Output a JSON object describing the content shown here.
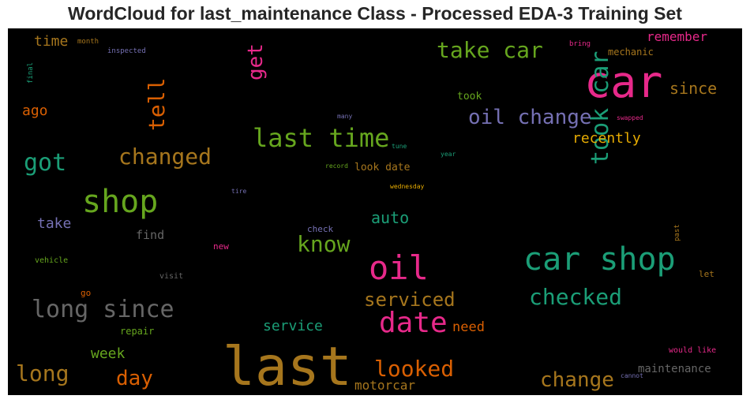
{
  "chart_data": {
    "type": "wordcloud",
    "title": "WordCloud for last_maintenance Class - Processed EDA-3 Training Set",
    "background": "#000000",
    "palette": [
      "#e7298a",
      "#66a61e",
      "#1b9e77",
      "#a6761d",
      "#7570b3",
      "#d95f02",
      "#666666",
      "#e6ab02"
    ],
    "words": [
      {
        "text": "last",
        "color": "#a6761d",
        "vertical": false
      },
      {
        "text": "car",
        "color": "#e7298a",
        "vertical": false
      },
      {
        "text": "car shop",
        "color": "#1b9e77",
        "vertical": false
      },
      {
        "text": "shop",
        "color": "#66a61e",
        "vertical": false
      },
      {
        "text": "oil",
        "color": "#e7298a",
        "vertical": false
      },
      {
        "text": "took car",
        "color": "#1b9e77",
        "vertical": true
      },
      {
        "text": "date",
        "color": "#e7298a",
        "vertical": false
      },
      {
        "text": "last time",
        "color": "#66a61e",
        "vertical": false
      },
      {
        "text": "long since",
        "color": "#666666",
        "vertical": false
      },
      {
        "text": "take car",
        "color": "#66a61e",
        "vertical": false
      },
      {
        "text": "changed",
        "color": "#a6761d",
        "vertical": false
      },
      {
        "text": "checked",
        "color": "#1b9e77",
        "vertical": false
      },
      {
        "text": "oil change",
        "color": "#7570b3",
        "vertical": false
      },
      {
        "text": "looked",
        "color": "#d95f02",
        "vertical": false
      },
      {
        "text": "change",
        "color": "#a6761d",
        "vertical": false
      },
      {
        "text": "tell",
        "color": "#d95f02",
        "vertical": true
      },
      {
        "text": "got",
        "color": "#1b9e77",
        "vertical": false
      },
      {
        "text": "know",
        "color": "#66a61e",
        "vertical": false
      },
      {
        "text": "long",
        "color": "#a6761d",
        "vertical": false
      },
      {
        "text": "get",
        "color": "#e7298a",
        "vertical": true
      },
      {
        "text": "day",
        "color": "#d95f02",
        "vertical": false
      },
      {
        "text": "serviced",
        "color": "#a6761d",
        "vertical": false
      },
      {
        "text": "auto",
        "color": "#1b9e77",
        "vertical": false
      },
      {
        "text": "since",
        "color": "#a6761d",
        "vertical": false
      },
      {
        "text": "recently",
        "color": "#e6ab02",
        "vertical": false
      },
      {
        "text": "service",
        "color": "#1b9e77",
        "vertical": false
      },
      {
        "text": "week",
        "color": "#66a61e",
        "vertical": false
      },
      {
        "text": "motorcar",
        "color": "#a6761d",
        "vertical": false
      },
      {
        "text": "ago",
        "color": "#d95f02",
        "vertical": false
      },
      {
        "text": "need",
        "color": "#d95f02",
        "vertical": false
      },
      {
        "text": "remember",
        "color": "#e7298a",
        "vertical": false
      },
      {
        "text": "maintenance",
        "color": "#666666",
        "vertical": false
      },
      {
        "text": "take",
        "color": "#7570b3",
        "vertical": false
      },
      {
        "text": "time",
        "color": "#a6761d",
        "vertical": false
      },
      {
        "text": "find",
        "color": "#666666",
        "vertical": false
      },
      {
        "text": "look date",
        "color": "#a6761d",
        "vertical": false
      },
      {
        "text": "took",
        "color": "#66a61e",
        "vertical": false
      },
      {
        "text": "mechanic",
        "color": "#a6761d",
        "vertical": false
      },
      {
        "text": "repair",
        "color": "#66a61e",
        "vertical": false
      },
      {
        "text": "check",
        "color": "#7570b3",
        "vertical": false
      },
      {
        "text": "new",
        "color": "#e7298a",
        "vertical": false
      },
      {
        "text": "let",
        "color": "#a6761d",
        "vertical": false
      },
      {
        "text": "go",
        "color": "#d95f02",
        "vertical": false
      },
      {
        "text": "visit",
        "color": "#666666",
        "vertical": false
      },
      {
        "text": "would like",
        "color": "#e7298a",
        "vertical": false
      },
      {
        "text": "vehicle",
        "color": "#66a61e",
        "vertical": false
      },
      {
        "text": "month",
        "color": "#a6761d",
        "vertical": false
      },
      {
        "text": "inspected",
        "color": "#7570b3",
        "vertical": false
      },
      {
        "text": "bring",
        "color": "#e7298a",
        "vertical": false
      },
      {
        "text": "final",
        "color": "#1b9e77",
        "vertical": true
      },
      {
        "text": "many",
        "color": "#7570b3",
        "vertical": false
      },
      {
        "text": "swapped",
        "color": "#e7298a",
        "vertical": false
      },
      {
        "text": "tune",
        "color": "#1b9e77",
        "vertical": false
      },
      {
        "text": "year",
        "color": "#1b9e77",
        "vertical": false
      },
      {
        "text": "record",
        "color": "#66a61e",
        "vertical": false
      },
      {
        "text": "wednesday",
        "color": "#e6ab02",
        "vertical": false
      },
      {
        "text": "tire",
        "color": "#7570b3",
        "vertical": false
      },
      {
        "text": "past",
        "color": "#a6761d",
        "vertical": true
      },
      {
        "text": "cannot",
        "color": "#7570b3",
        "vertical": false
      }
    ]
  }
}
